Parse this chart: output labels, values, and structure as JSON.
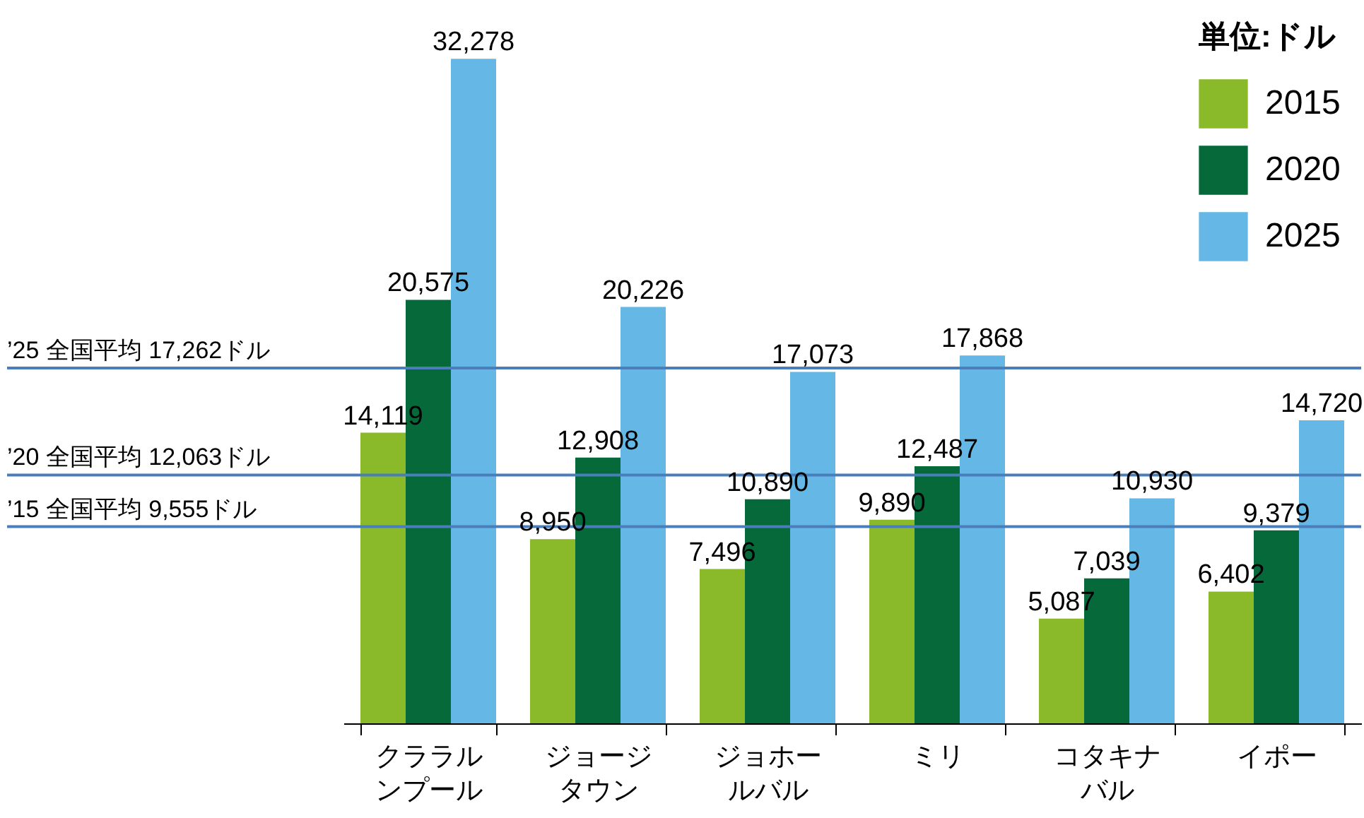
{
  "chart_data": {
    "type": "bar",
    "legend_title": "単位:ドル",
    "legend": "top right",
    "categories": [
      "クララルンプール",
      "ジョージタウン",
      "ジョホールバル",
      "ミリ",
      "コタキナバル",
      "イポー"
    ],
    "tick_labels": "x",
    "series": [
      {
        "name": "2015",
        "color": "#8aba2a",
        "values": [
          14119,
          8950,
          7496,
          9890,
          5087,
          6402
        ],
        "value_labels": [
          "14,119",
          "8,950",
          "7,496",
          "9,890",
          "5,087",
          "6,402"
        ]
      },
      {
        "name": "2020",
        "color": "#05693a",
        "values": [
          20575,
          12908,
          10890,
          12487,
          7039,
          9379
        ],
        "value_labels": [
          "20,575",
          "12,908",
          "10,890",
          "12,487",
          "7,039",
          "9,379"
        ]
      },
      {
        "name": "2025",
        "color": "#65b8e6",
        "values": [
          32278,
          20226,
          17073,
          17868,
          10930,
          14720
        ],
        "value_labels": [
          "32,278",
          "20,226",
          "17,073",
          "17,868",
          "10,930",
          "14,720"
        ]
      }
    ],
    "ref_lines": [
      {
        "axis": "y",
        "value": 17262,
        "label": "’25 全国平均 17,262ドル",
        "color": "#4a7ebb"
      },
      {
        "axis": "y",
        "value": 12063,
        "label": "’20 全国平均 12,063ドル",
        "color": "#4a7ebb"
      },
      {
        "axis": "y",
        "value": 9555,
        "label": "’15 全国平均 9,555ドル",
        "color": "#4a7ebb"
      }
    ]
  }
}
